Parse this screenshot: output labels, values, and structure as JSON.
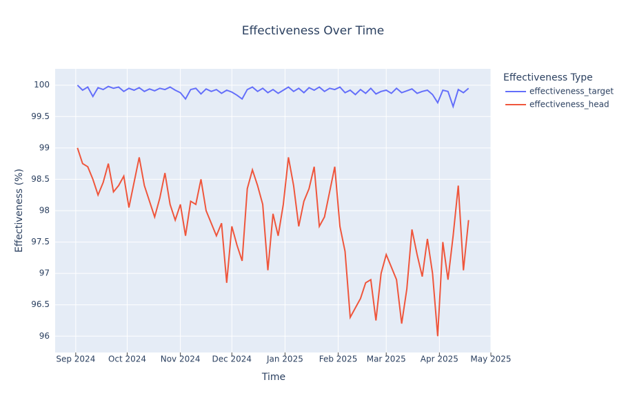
{
  "chart_data": {
    "type": "line",
    "title": "Effectiveness Over Time",
    "x_label": "Time",
    "y_label": "Effectiveness (%)",
    "legend_title": "Effectiveness Type",
    "legend_position": "right",
    "grid": true,
    "x": [
      "2024-09-02",
      "2024-09-05",
      "2024-09-08",
      "2024-09-11",
      "2024-09-14",
      "2024-09-17",
      "2024-09-20",
      "2024-09-23",
      "2024-09-26",
      "2024-09-29",
      "2024-10-02",
      "2024-10-05",
      "2024-10-08",
      "2024-10-11",
      "2024-10-14",
      "2024-10-17",
      "2024-10-20",
      "2024-10-23",
      "2024-10-26",
      "2024-10-29",
      "2024-11-01",
      "2024-11-04",
      "2024-11-07",
      "2024-11-10",
      "2024-11-13",
      "2024-11-16",
      "2024-11-19",
      "2024-11-22",
      "2024-11-25",
      "2024-11-28",
      "2024-12-01",
      "2024-12-04",
      "2024-12-07",
      "2024-12-10",
      "2024-12-13",
      "2024-12-16",
      "2024-12-19",
      "2024-12-22",
      "2024-12-25",
      "2024-12-28",
      "2024-12-31",
      "2025-01-03",
      "2025-01-06",
      "2025-01-09",
      "2025-01-12",
      "2025-01-15",
      "2025-01-18",
      "2025-01-21",
      "2025-01-24",
      "2025-01-27",
      "2025-01-30",
      "2025-02-02",
      "2025-02-05",
      "2025-02-08",
      "2025-02-11",
      "2025-02-14",
      "2025-02-17",
      "2025-02-20",
      "2025-02-23",
      "2025-02-26",
      "2025-03-01",
      "2025-03-04",
      "2025-03-07",
      "2025-03-10",
      "2025-03-13",
      "2025-03-16",
      "2025-03-19",
      "2025-03-22",
      "2025-03-25",
      "2025-03-28",
      "2025-03-31",
      "2025-04-03",
      "2025-04-06",
      "2025-04-09",
      "2025-04-12",
      "2025-04-15",
      "2025-04-18"
    ],
    "series": [
      {
        "name": "effectiveness_target",
        "color": "#636efa",
        "values": [
          100,
          99.92,
          99.97,
          99.82,
          99.96,
          99.93,
          99.98,
          99.95,
          99.97,
          99.9,
          99.95,
          99.92,
          99.96,
          99.9,
          99.94,
          99.91,
          99.95,
          99.93,
          99.97,
          99.92,
          99.88,
          99.78,
          99.93,
          99.95,
          99.86,
          99.94,
          99.9,
          99.93,
          99.87,
          99.92,
          99.89,
          99.84,
          99.78,
          99.93,
          99.97,
          99.9,
          99.95,
          99.88,
          99.93,
          99.87,
          99.92,
          99.97,
          99.9,
          99.95,
          99.88,
          99.96,
          99.92,
          99.97,
          99.9,
          99.95,
          99.93,
          99.97,
          99.88,
          99.92,
          99.85,
          99.93,
          99.87,
          99.95,
          99.86,
          99.9,
          99.92,
          99.87,
          99.95,
          99.88,
          99.91,
          99.94,
          99.87,
          99.9,
          99.92,
          99.85,
          99.72,
          99.92,
          99.9,
          99.66,
          99.93,
          99.88,
          99.95
        ]
      },
      {
        "name": "effectiveness_head",
        "color": "#ef553b",
        "values": [
          99.0,
          98.75,
          98.7,
          98.5,
          98.25,
          98.45,
          98.75,
          98.3,
          98.4,
          98.55,
          98.05,
          98.45,
          98.85,
          98.4,
          98.15,
          97.9,
          98.2,
          98.6,
          98.1,
          97.85,
          98.1,
          97.6,
          98.15,
          98.1,
          98.5,
          98.0,
          97.8,
          97.6,
          97.8,
          96.85,
          97.75,
          97.45,
          97.2,
          98.35,
          98.65,
          98.4,
          98.1,
          97.05,
          97.95,
          97.6,
          98.1,
          98.85,
          98.4,
          97.75,
          98.15,
          98.35,
          98.7,
          97.75,
          97.9,
          98.3,
          98.7,
          97.75,
          97.35,
          96.3,
          96.45,
          96.6,
          96.85,
          96.9,
          96.25,
          97.0,
          97.3,
          97.1,
          96.9,
          96.2,
          96.75,
          97.7,
          97.3,
          96.95,
          97.55,
          97.0,
          96.0,
          97.5,
          96.9,
          97.6,
          98.4,
          97.05,
          97.85
        ]
      }
    ],
    "xlim": [
      "2024-08-20",
      "2025-05-01"
    ],
    "xticks": [
      {
        "value": "2024-09-01",
        "label": "Sep 2024"
      },
      {
        "value": "2024-10-01",
        "label": "Oct 2024"
      },
      {
        "value": "2024-11-01",
        "label": "Nov 2024"
      },
      {
        "value": "2024-12-01",
        "label": "Dec 2024"
      },
      {
        "value": "2025-01-01",
        "label": "Jan 2025"
      },
      {
        "value": "2025-02-01",
        "label": "Feb 2025"
      },
      {
        "value": "2025-03-01",
        "label": "Mar 2025"
      },
      {
        "value": "2025-04-01",
        "label": "Apr 2025"
      },
      {
        "value": "2025-05-01",
        "label": "May 2025"
      }
    ],
    "ylim": [
      95.74,
      100.26
    ],
    "yticks": [
      96,
      96.5,
      97,
      97.5,
      98,
      98.5,
      99,
      99.5,
      100
    ]
  }
}
